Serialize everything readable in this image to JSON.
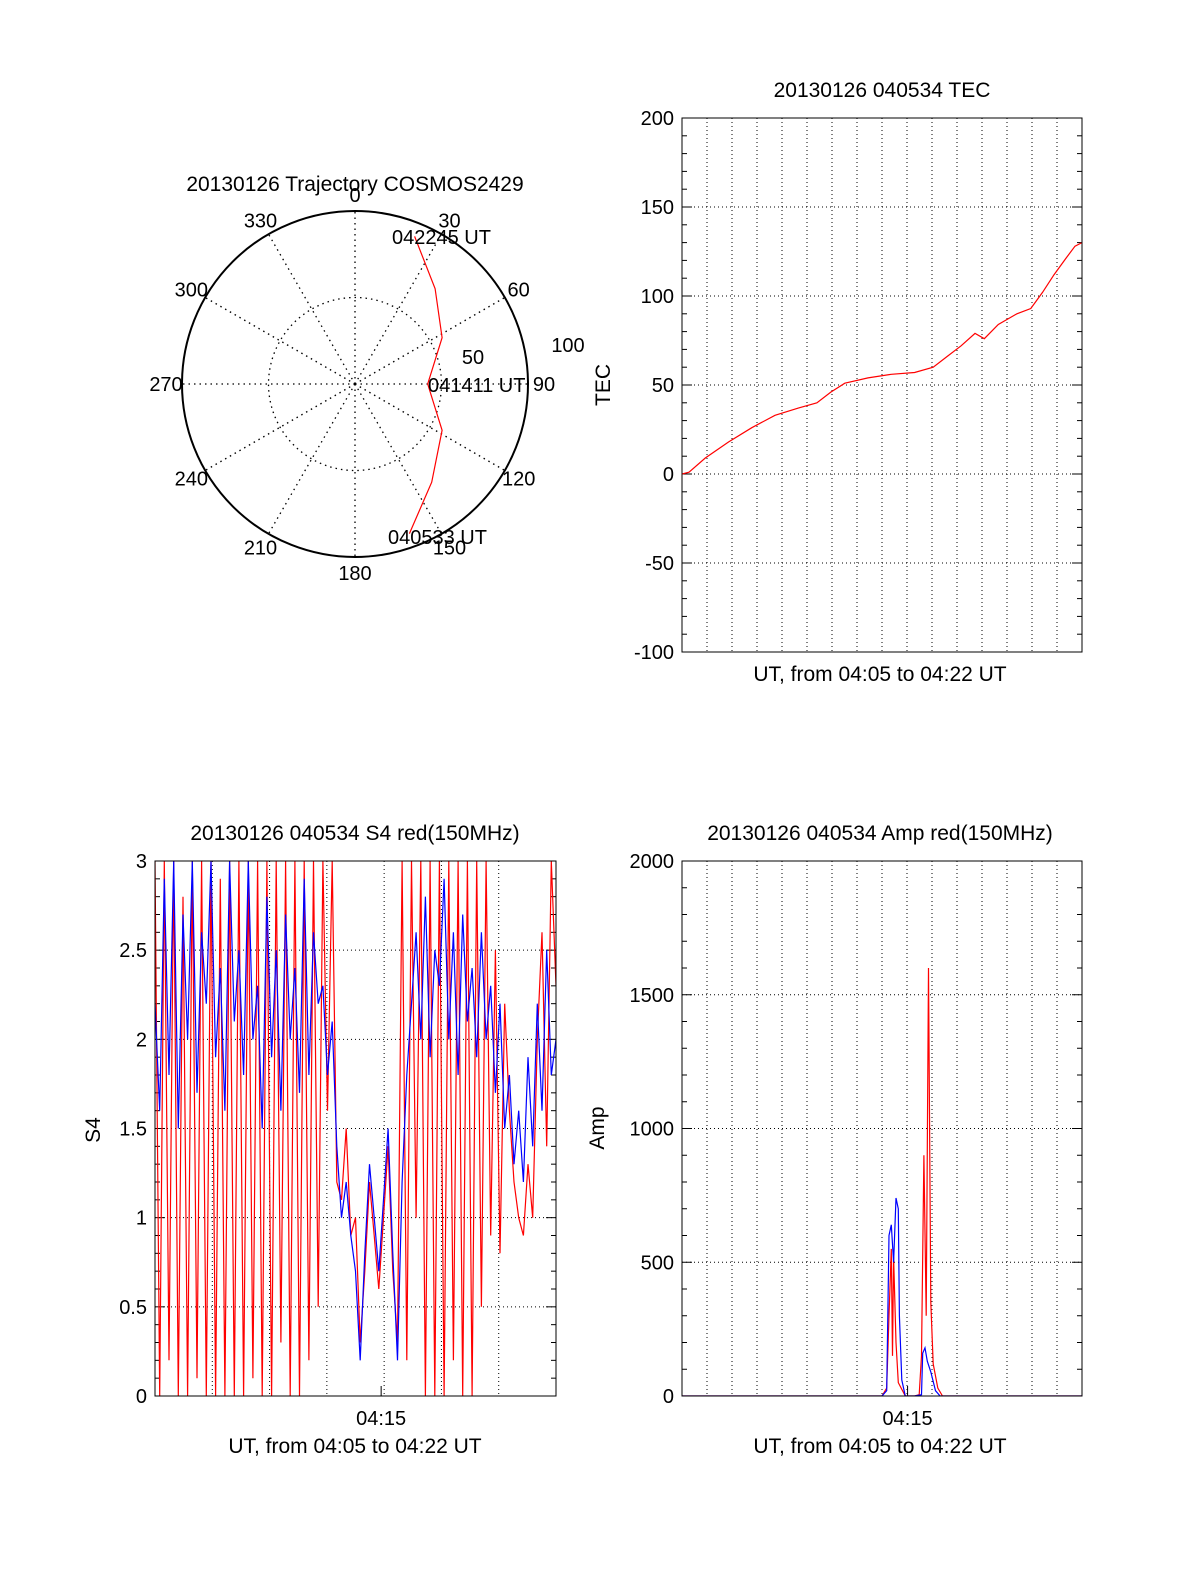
{
  "colors": {
    "red": "#ff0000",
    "blue": "#0000ff",
    "axis": "#000000",
    "grid": "#000000",
    "background": "#ffffff"
  },
  "chart_data": [
    {
      "id": "trajectory",
      "type": "polar",
      "title": "20130126 Trajectory COSMOS2429",
      "azimuth_labels": [
        "0",
        "30",
        "60",
        "90",
        "120",
        "150",
        "180",
        "210",
        "240",
        "270",
        "300",
        "330"
      ],
      "radial_labels": [
        "50",
        "100"
      ],
      "radial_range": [
        0,
        100
      ],
      "grid": true,
      "start_label": "040533 UT",
      "mid_label": "041411 UT",
      "end_label": "042245 UT",
      "track": {
        "color": "red",
        "points": [
          [
            160,
            92
          ],
          [
            142,
            72
          ],
          [
            118,
            57
          ],
          [
            90,
            42
          ],
          [
            62,
            57
          ],
          [
            40,
            72
          ],
          [
            22,
            92
          ]
        ]
      }
    },
    {
      "id": "tec",
      "type": "line",
      "title": "20130126 040534 TEC",
      "xlabel": "UT, from 04:05 to 04:22 UT",
      "ylabel": "TEC",
      "ylim": [
        -100,
        200
      ],
      "yticks": [
        "-100",
        "-50",
        "0",
        "50",
        "100",
        "150",
        "200"
      ],
      "xlim": [
        0,
        17.2
      ],
      "grid": true,
      "series": [
        {
          "color": "red",
          "x": [
            0.0,
            0.3,
            1.0,
            2.0,
            3.0,
            4.0,
            5.0,
            5.8,
            6.4,
            7.0,
            8.0,
            9.0,
            10.0,
            10.8,
            11.4,
            12.0,
            12.6,
            13.0,
            13.6,
            14.4,
            15.0,
            15.5,
            16.0,
            16.5,
            16.9,
            17.2
          ],
          "y": [
            0,
            1,
            9,
            18,
            26,
            33,
            37,
            40,
            46,
            51,
            54,
            56,
            57,
            60,
            66,
            72,
            79,
            76,
            84,
            90,
            93,
            102,
            112,
            121,
            128,
            130
          ]
        }
      ]
    },
    {
      "id": "s4",
      "type": "line",
      "title": "20130126 040534 S4 red(150MHz)",
      "xlabel": "UT, from 04:05 to 04:22 UT",
      "ylabel": "S4",
      "ylim": [
        0,
        3
      ],
      "yticks": [
        "0",
        "0.5",
        "1",
        "1.5",
        "2",
        "2.5",
        "3"
      ],
      "xlim": [
        0,
        17.2
      ],
      "xtick_label": "04:15",
      "xtick_value": 9.7,
      "grid": true,
      "series": [
        {
          "color": "red",
          "x": [
            0.0,
            0.2,
            0.4,
            0.6,
            0.8,
            1.0,
            1.2,
            1.4,
            1.6,
            1.8,
            2.0,
            2.2,
            2.4,
            2.6,
            2.8,
            3.0,
            3.2,
            3.4,
            3.6,
            3.8,
            4.0,
            4.2,
            4.4,
            4.6,
            4.8,
            5.0,
            5.2,
            5.4,
            5.6,
            5.8,
            6.0,
            6.2,
            6.4,
            6.6,
            6.8,
            7.0,
            7.2,
            7.4,
            7.6,
            7.8,
            8.0,
            8.2,
            8.4,
            8.6,
            8.8,
            9.0,
            9.2,
            9.4,
            9.6,
            9.8,
            10.0,
            10.2,
            10.4,
            10.6,
            10.8,
            11.0,
            11.2,
            11.4,
            11.6,
            11.8,
            12.0,
            12.2,
            12.4,
            12.6,
            12.8,
            13.0,
            13.2,
            13.4,
            13.6,
            13.8,
            14.0,
            14.2,
            14.4,
            14.6,
            14.8,
            15.0,
            15.2,
            15.4,
            15.6,
            15.8,
            16.0,
            16.2,
            16.4,
            16.6,
            16.8,
            17.0,
            17.2
          ],
          "y": [
            3.0,
            0.0,
            3.0,
            0.2,
            3.0,
            0.0,
            2.8,
            0.0,
            3.0,
            0.1,
            3.0,
            0.0,
            3.0,
            0.0,
            2.9,
            0.0,
            3.0,
            0.0,
            3.0,
            0.0,
            3.0,
            0.1,
            3.0,
            0.0,
            3.0,
            0.0,
            3.0,
            0.3,
            3.0,
            0.0,
            3.0,
            0.0,
            3.0,
            0.2,
            3.0,
            0.5,
            3.0,
            1.6,
            3.0,
            1.2,
            1.1,
            1.5,
            0.9,
            1.0,
            0.3,
            0.7,
            1.2,
            0.9,
            0.6,
            1.0,
            1.4,
            0.7,
            0.3,
            3.0,
            0.2,
            3.0,
            1.0,
            3.0,
            0.0,
            3.0,
            0.0,
            3.0,
            0.0,
            3.0,
            0.2,
            3.0,
            0.0,
            3.0,
            0.0,
            3.0,
            0.5,
            3.0,
            0.9,
            2.5,
            0.8,
            2.2,
            1.6,
            1.2,
            1.0,
            0.9,
            1.3,
            1.0,
            2.0,
            2.6,
            1.4,
            3.0,
            2.3
          ]
        },
        {
          "color": "blue",
          "x": [
            0.0,
            0.2,
            0.4,
            0.6,
            0.8,
            1.0,
            1.2,
            1.4,
            1.6,
            1.8,
            2.0,
            2.2,
            2.4,
            2.6,
            2.8,
            3.0,
            3.2,
            3.4,
            3.6,
            3.8,
            4.0,
            4.2,
            4.4,
            4.6,
            4.8,
            5.0,
            5.2,
            5.4,
            5.6,
            5.8,
            6.0,
            6.2,
            6.4,
            6.6,
            6.8,
            7.0,
            7.2,
            7.4,
            7.6,
            7.8,
            8.0,
            8.2,
            8.4,
            8.6,
            8.8,
            9.0,
            9.2,
            9.4,
            9.6,
            9.8,
            10.0,
            10.2,
            10.4,
            10.6,
            10.8,
            11.0,
            11.2,
            11.4,
            11.6,
            11.8,
            12.0,
            12.2,
            12.4,
            12.6,
            12.8,
            13.0,
            13.2,
            13.4,
            13.6,
            13.8,
            14.0,
            14.2,
            14.4,
            14.6,
            14.8,
            15.0,
            15.2,
            15.4,
            15.6,
            15.8,
            16.0,
            16.2,
            16.4,
            16.6,
            16.8,
            17.0,
            17.2
          ],
          "y": [
            2.2,
            1.6,
            2.9,
            1.8,
            3.0,
            1.5,
            2.7,
            2.0,
            3.0,
            1.7,
            2.6,
            2.2,
            3.0,
            1.9,
            2.4,
            1.6,
            3.0,
            2.1,
            2.5,
            1.8,
            3.0,
            2.0,
            2.3,
            1.5,
            2.8,
            1.9,
            2.5,
            1.6,
            2.7,
            2.0,
            2.4,
            1.7,
            2.9,
            1.8,
            2.6,
            2.2,
            2.3,
            1.8,
            2.1,
            1.4,
            1.0,
            1.2,
            0.9,
            0.7,
            0.2,
            0.8,
            1.3,
            1.0,
            0.7,
            1.1,
            1.5,
            0.8,
            0.2,
            1.2,
            1.8,
            2.2,
            2.6,
            2.0,
            2.8,
            1.9,
            2.5,
            2.3,
            2.9,
            2.0,
            2.6,
            1.8,
            2.7,
            2.1,
            2.4,
            1.9,
            2.6,
            2.0,
            2.3,
            1.7,
            2.2,
            1.5,
            1.8,
            1.3,
            1.6,
            1.2,
            1.9,
            1.4,
            2.2,
            1.6,
            2.5,
            1.8,
            2.0
          ]
        }
      ]
    },
    {
      "id": "amp",
      "type": "line",
      "title": "20130126 040534 Amp red(150MHz)",
      "xlabel": "UT, from 04:05 to 04:22 UT",
      "ylabel": "Amp",
      "ylim": [
        0,
        2000
      ],
      "yticks": [
        "0",
        "500",
        "1000",
        "1500",
        "2000"
      ],
      "xlim": [
        0,
        17.2
      ],
      "xtick_label": "04:15",
      "xtick_value": 9.7,
      "grid": true,
      "series": [
        {
          "color": "red",
          "x": [
            0.0,
            8.6,
            8.8,
            8.9,
            9.0,
            9.05,
            9.1,
            9.2,
            9.3,
            9.6,
            9.7,
            10.0,
            10.2,
            10.3,
            10.4,
            10.5,
            10.6,
            10.7,
            10.8,
            11.0,
            11.2,
            17.2
          ],
          "y": [
            0,
            0,
            30,
            300,
            550,
            150,
            520,
            200,
            50,
            0,
            0,
            0,
            5,
            150,
            900,
            300,
            1600,
            350,
            120,
            30,
            0,
            0
          ]
        },
        {
          "color": "blue",
          "x": [
            0.0,
            8.6,
            8.8,
            8.9,
            9.0,
            9.1,
            9.2,
            9.3,
            9.35,
            9.45,
            9.6,
            10.0,
            10.3,
            10.35,
            10.45,
            10.55,
            10.7,
            10.9,
            11.1,
            17.2
          ],
          "y": [
            0,
            0,
            20,
            600,
            640,
            500,
            740,
            700,
            300,
            60,
            0,
            0,
            5,
            160,
            180,
            130,
            90,
            20,
            0,
            0
          ]
        }
      ]
    }
  ]
}
